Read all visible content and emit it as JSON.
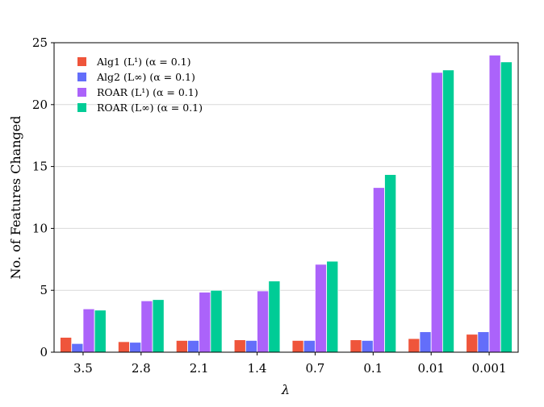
{
  "chart_data": {
    "type": "bar",
    "title": "",
    "xlabel": "λ",
    "ylabel": "No. of Features Changed",
    "categories": [
      "3.5",
      "2.8",
      "2.1",
      "1.4",
      "0.7",
      "0.1",
      "0.01",
      "0.001"
    ],
    "ylim": [
      0,
      25
    ],
    "yticks": [
      0,
      5,
      10,
      15,
      20,
      25
    ],
    "grid": true,
    "legend_position": "top-left",
    "series": [
      {
        "name": "Alg1 (L¹) (α = 0.1)",
        "color": "#ef553b",
        "values": [
          1.2,
          0.85,
          0.95,
          1.0,
          0.95,
          1.0,
          1.1,
          1.45
        ]
      },
      {
        "name": "Alg2 (L∞) (α = 0.1)",
        "color": "#636efa",
        "values": [
          0.7,
          0.8,
          0.95,
          0.95,
          0.95,
          0.95,
          1.65,
          1.65
        ]
      },
      {
        "name": "ROAR (L¹) (α = 0.1)",
        "color": "#ab63fa",
        "values": [
          3.5,
          4.15,
          4.85,
          4.95,
          7.1,
          13.3,
          22.6,
          24.0
        ]
      },
      {
        "name": "ROAR (L∞) (α = 0.1)",
        "color": "#00cc96",
        "values": [
          3.4,
          4.25,
          5.0,
          5.75,
          7.35,
          14.35,
          22.8,
          23.45
        ]
      }
    ]
  }
}
